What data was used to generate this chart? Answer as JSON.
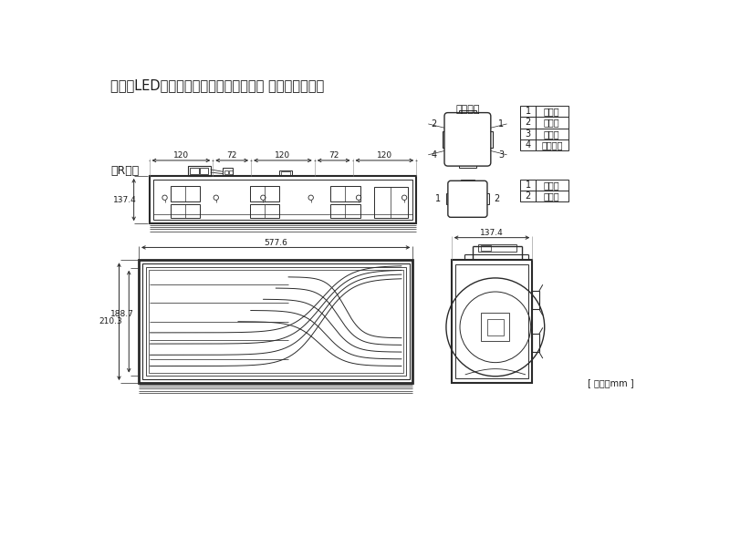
{
  "title": "オールLEDリアコンビネーションランプ 歌舞伎デザイン",
  "bg_color": "#ffffff",
  "line_color": "#2a2a2a",
  "text_color": "#1a1a1a",
  "connector_label": "コネクタ",
  "r_side_label": "（R側）",
  "unit_label": "[ 単位：mm ]",
  "dim_top_labels": [
    "120",
    "72",
    "120",
    "72",
    "120"
  ],
  "dim_137_4": "137.4",
  "dim_577_6": "577.6",
  "dim_210_3": "210.3",
  "dim_188_7": "188.7",
  "dim_137_4_right": "137.4",
  "connector4_table": [
    [
      "1",
      "ターン"
    ],
    [
      "2",
      "アース"
    ],
    [
      "3",
      "テール"
    ],
    [
      "4",
      "ストップ"
    ]
  ],
  "connector2_table": [
    [
      "1",
      "バック"
    ],
    [
      "2",
      "アース"
    ]
  ]
}
